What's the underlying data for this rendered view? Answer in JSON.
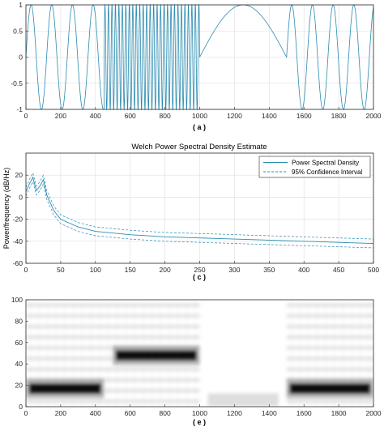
{
  "panels": [
    {
      "caption": "( a )",
      "type": "line",
      "xlim": [
        0,
        2000
      ],
      "ylim": [
        -1,
        1
      ],
      "xticks": [
        "0",
        "200",
        "400",
        "600",
        "800",
        "1000",
        "1200",
        "1400",
        "1600",
        "1800",
        "2000"
      ],
      "yticks": [
        "1",
        "0.5",
        "0",
        "-0.5",
        "-1"
      ],
      "grid": true,
      "color": "#2a8bb0",
      "segments": [
        {
          "x": [
            0,
            450
          ],
          "signal": "sine",
          "frequency_cycles_per_sample": 0.0084
        },
        {
          "x": [
            450,
            1000
          ],
          "signal": "sine",
          "frequency_cycles_per_sample": 0.05
        },
        {
          "x": [
            1000,
            1500
          ],
          "signal": "sine",
          "frequency_cycles_per_sample": 0.001
        },
        {
          "x": [
            1500,
            2000
          ],
          "signal": "sine",
          "frequency_cycles_per_sample": 0.0084
        }
      ]
    },
    {
      "caption": "( c )",
      "type": "line",
      "title": "Welch Power Spectral Density Estimate",
      "ylabel": "Power/frequency (dB/Hz)",
      "xlim": [
        0,
        500
      ],
      "ylim": [
        -60,
        40
      ],
      "xticks": [
        "0",
        "50",
        "100",
        "150",
        "200",
        "250",
        "300",
        "350",
        "400",
        "450",
        "500"
      ],
      "yticks": [
        "20",
        "0",
        "-20",
        "-40",
        "-60"
      ],
      "grid": true,
      "legend_position": "top-right",
      "legend": [
        "Power Spectral Density",
        "95% Confidence Interval"
      ],
      "series": [
        {
          "name": "Power Spectral Density",
          "x": [
            0,
            5,
            10,
            15,
            20,
            25,
            30,
            40,
            50,
            75,
            100,
            150,
            200,
            250,
            300,
            350,
            400,
            450,
            500
          ],
          "y": [
            5,
            12,
            18,
            6,
            10,
            16,
            2,
            -12,
            -20,
            -27,
            -31,
            -34,
            -36,
            -37,
            -38,
            -39,
            -40,
            -41,
            -42
          ]
        },
        {
          "name": "95% Confidence Interval",
          "x": [
            0,
            5,
            10,
            15,
            20,
            25,
            30,
            40,
            50,
            75,
            100,
            150,
            200,
            250,
            300,
            350,
            400,
            450,
            500
          ],
          "y": [
            9,
            16,
            22,
            10,
            14,
            20,
            6,
            -8,
            -16,
            -23,
            -27,
            -30,
            -32,
            -33,
            -34,
            -35,
            -36,
            -37,
            -38
          ]
        },
        {
          "name": "95% Confidence Interval",
          "x": [
            0,
            5,
            10,
            15,
            20,
            25,
            30,
            40,
            50,
            75,
            100,
            150,
            200,
            250,
            300,
            350,
            400,
            450,
            500
          ],
          "y": [
            1,
            8,
            14,
            2,
            6,
            12,
            -2,
            -16,
            -24,
            -31,
            -35,
            -38,
            -40,
            -41,
            -42,
            -43,
            -44,
            -45,
            -46
          ]
        }
      ]
    },
    {
      "caption": "( e )",
      "type": "heatmap",
      "xlim": [
        0,
        2000
      ],
      "ylim": [
        0,
        100
      ],
      "xticks": [
        "0",
        "200",
        "400",
        "600",
        "800",
        "1000",
        "1200",
        "1400",
        "1600",
        "1800",
        "2000"
      ],
      "yticks": [
        "100",
        "80",
        "60",
        "40",
        "20",
        "0"
      ],
      "colormap": "gray",
      "energy_bands": [
        {
          "x": [
            0,
            450
          ],
          "y_center": 17,
          "level": "high"
        },
        {
          "x": [
            500,
            1000
          ],
          "y_center": 48,
          "level": "high"
        },
        {
          "x": [
            1000,
            1500
          ],
          "y_center": 2,
          "level": "low"
        },
        {
          "x": [
            1500,
            2000
          ],
          "y_center": 17,
          "level": "high"
        }
      ]
    }
  ]
}
